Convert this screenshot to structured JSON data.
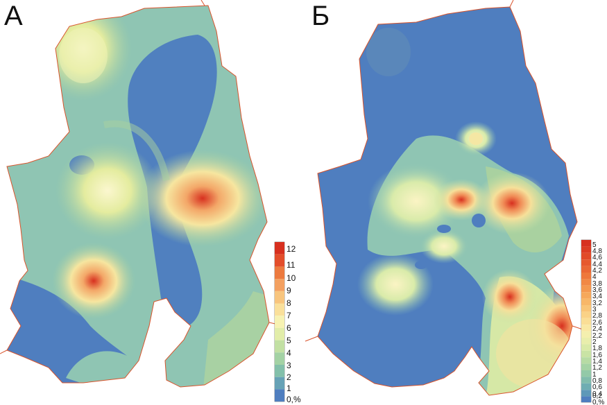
{
  "panels": [
    {
      "letter": "А",
      "legend": {
        "labels": [
          "12",
          "11",
          "10",
          "9",
          "8",
          "7",
          "6",
          "5",
          "4",
          "3",
          "2",
          "1",
          "0,%"
        ]
      }
    },
    {
      "letter": "Б",
      "legend": {
        "labels": [
          "5",
          "4,8",
          "4,6",
          "4,4",
          "4,2",
          "4",
          "3,8",
          "3,6",
          "3,4",
          "3,2",
          "3",
          "2,8",
          "2,6",
          "2,4",
          "2,2",
          "2",
          "1,8",
          "1,6",
          "1,4",
          "1,2",
          "1",
          "0,8",
          "0,6",
          "0,4",
          "0,2",
          "0,%"
        ]
      }
    }
  ],
  "colors": {
    "low": "#4f7ebf",
    "mid": "#e9efae",
    "high": "#d7301f",
    "border": "#d9532b"
  }
}
